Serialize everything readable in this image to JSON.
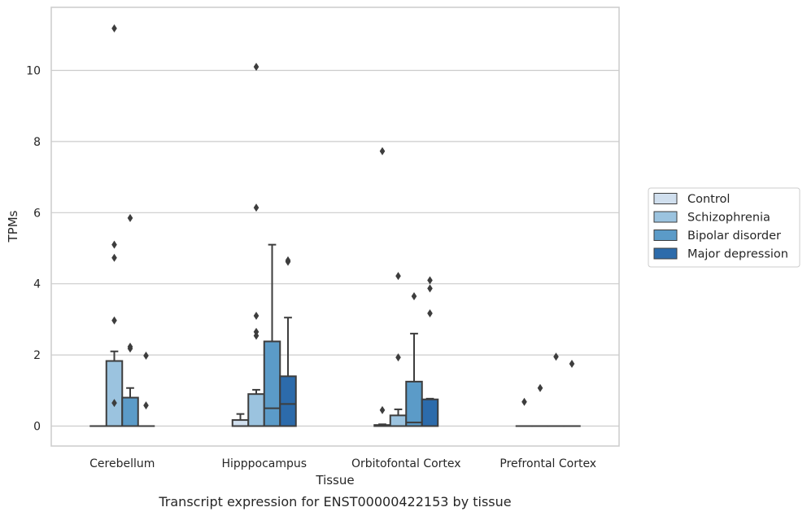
{
  "caption": "Transcript expression for ENST00000422153 by tissue",
  "chart_data": {
    "type": "box",
    "xlabel": "Tissue",
    "ylabel": "TPMs",
    "ylim": [
      -0.55,
      11.6
    ],
    "yticks": [
      0,
      2,
      4,
      6,
      8,
      10
    ],
    "grid": "horizontal",
    "legend_position": "right",
    "categories": [
      "Cerebellum",
      "Hipppocampus",
      "Orbitofontal Cortex",
      "Prefrontal Cortex"
    ],
    "series": [
      {
        "name": "Control",
        "color": "#d0dfee",
        "boxes": [
          {
            "q1": 0,
            "median": 0,
            "q3": 0,
            "whislo": 0,
            "whishi": 0,
            "fliers": []
          },
          {
            "q1": 0,
            "median": 0,
            "q3": 0.17,
            "whislo": 0,
            "whishi": 0.34,
            "fliers": []
          },
          {
            "q1": 0,
            "median": 0,
            "q3": 0.03,
            "whislo": 0,
            "whishi": 0.05,
            "fliers": [
              0.45,
              7.73
            ]
          },
          {
            "q1": 0,
            "median": 0,
            "q3": 0,
            "whislo": 0,
            "whishi": 0,
            "fliers": [
              0.68
            ]
          }
        ]
      },
      {
        "name": "Schizophrenia",
        "color": "#9bc3df",
        "boxes": [
          {
            "q1": 0,
            "median": 0,
            "q3": 1.83,
            "whislo": 0,
            "whishi": 2.1,
            "fliers": [
              0.65,
              2.97,
              4.73,
              5.1,
              11.18
            ]
          },
          {
            "q1": 0,
            "median": 0,
            "q3": 0.9,
            "whislo": 0,
            "whishi": 1.02,
            "fliers": [
              2.54,
              2.65,
              3.1,
              6.14,
              10.1
            ]
          },
          {
            "q1": 0,
            "median": 0,
            "q3": 0.3,
            "whislo": 0,
            "whishi": 0.47,
            "fliers": [
              1.93,
              4.22
            ]
          },
          {
            "q1": 0,
            "median": 0,
            "q3": 0,
            "whislo": 0,
            "whishi": 0,
            "fliers": [
              1.07
            ]
          }
        ]
      },
      {
        "name": "Bipolar disorder",
        "color": "#5b9bc8",
        "boxes": [
          {
            "q1": 0,
            "median": 0,
            "q3": 0.8,
            "whislo": 0,
            "whishi": 1.07,
            "fliers": [
              2.18,
              2.23,
              5.85
            ]
          },
          {
            "q1": 0,
            "median": 0.5,
            "q3": 2.38,
            "whislo": 0,
            "whishi": 5.1,
            "fliers": []
          },
          {
            "q1": 0,
            "median": 0.1,
            "q3": 1.25,
            "whislo": 0,
            "whishi": 2.6,
            "fliers": [
              3.65
            ]
          },
          {
            "q1": 0,
            "median": 0,
            "q3": 0,
            "whislo": 0,
            "whishi": 0,
            "fliers": [
              1.95
            ]
          }
        ]
      },
      {
        "name": "Major depression",
        "color": "#2c6bab",
        "boxes": [
          {
            "q1": 0,
            "median": 0,
            "q3": 0,
            "whislo": 0,
            "whishi": 0,
            "fliers": [
              0.58,
              1.98
            ]
          },
          {
            "q1": 0,
            "median": 0.62,
            "q3": 1.4,
            "whislo": 0,
            "whishi": 3.05,
            "fliers": [
              4.62,
              4.66
            ]
          },
          {
            "q1": 0,
            "median": 0,
            "q3": 0.75,
            "whislo": 0,
            "whishi": 0.77,
            "fliers": [
              3.17,
              3.87,
              4.1
            ]
          },
          {
            "q1": 0,
            "median": 0,
            "q3": 0,
            "whislo": 0,
            "whishi": 0,
            "fliers": [
              1.75
            ]
          }
        ]
      }
    ]
  }
}
